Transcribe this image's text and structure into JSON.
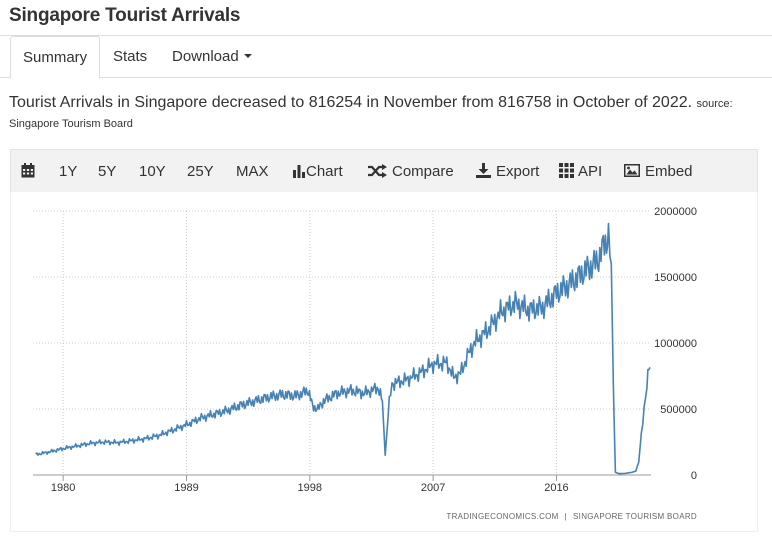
{
  "page": {
    "title": "Singapore Tourist Arrivals"
  },
  "tabs": [
    {
      "label": "Summary",
      "active": true
    },
    {
      "label": "Stats",
      "active": false
    },
    {
      "label": "Download",
      "active": false
    }
  ],
  "summary": {
    "text": "Tourist Arrivals in Singapore decreased to 816254 in November from 816758 in October of 2022.",
    "source_label": "source:",
    "source_name": "Singapore Tourism Board"
  },
  "toolbar": {
    "ranges": [
      "1Y",
      "5Y",
      "10Y",
      "25Y",
      "MAX"
    ],
    "chart_label": "Chart",
    "compare_label": "Compare",
    "export_label": "Export",
    "api_label": "API",
    "embed_label": "Embed"
  },
  "chart_data": {
    "type": "line",
    "title": "",
    "xlabel": "",
    "ylabel": "",
    "series_name": "Singapore Tourist Arrivals",
    "line_color": "#4682b4",
    "grid": true,
    "xlim": [
      1977.8,
      2022.9
    ],
    "ylim": [
      0,
      2000000
    ],
    "x_ticks": [
      1980,
      1989,
      1998,
      2007,
      2016
    ],
    "x_tick_labels": [
      "1980",
      "1989",
      "1998",
      "2007",
      "2016"
    ],
    "y_ticks": [
      0,
      500000,
      1000000,
      1500000,
      2000000
    ],
    "y_tick_labels": [
      "0",
      "500000",
      "1000000",
      "1500000",
      "2000000"
    ],
    "x": [
      1978.0,
      1979.0,
      1980.0,
      1981.0,
      1982.0,
      1983.0,
      1984.0,
      1985.0,
      1986.0,
      1987.0,
      1988.0,
      1989.0,
      1990.0,
      1991.0,
      1992.0,
      1993.0,
      1994.0,
      1995.0,
      1996.0,
      1997.0,
      1997.9,
      1998.2,
      1998.6,
      1999.0,
      2000.0,
      2001.0,
      2002.0,
      2003.0,
      2003.3,
      2003.5,
      2003.8,
      2004.0,
      2005.0,
      2006.0,
      2007.0,
      2008.0,
      2008.5,
      2009.0,
      2009.5,
      2010.0,
      2011.0,
      2012.0,
      2013.0,
      2014.0,
      2015.0,
      2016.0,
      2017.0,
      2018.0,
      2019.0,
      2019.5,
      2019.8,
      2020.0,
      2020.15,
      2020.3,
      2020.6,
      2021.0,
      2021.5,
      2021.8,
      2022.0,
      2022.2,
      2022.4,
      2022.6,
      2022.75,
      2022.83
    ],
    "y": [
      155000,
      175000,
      200000,
      220000,
      240000,
      250000,
      245000,
      260000,
      275000,
      300000,
      340000,
      380000,
      430000,
      460000,
      490000,
      530000,
      560000,
      590000,
      610000,
      600000,
      640000,
      520000,
      500000,
      560000,
      620000,
      640000,
      620000,
      660000,
      560000,
      150000,
      550000,
      690000,
      720000,
      770000,
      840000,
      850000,
      740000,
      770000,
      900000,
      1000000,
      1100000,
      1240000,
      1300000,
      1250000,
      1270000,
      1380000,
      1450000,
      1540000,
      1620000,
      1750000,
      1800000,
      1600000,
      700000,
      20000,
      10000,
      12000,
      20000,
      30000,
      100000,
      300000,
      500000,
      700000,
      816758,
      816254
    ]
  },
  "credits": {
    "site": "TRADINGECONOMICS.COM",
    "separator": "|",
    "source": "SINGAPORE TOURISM BOARD"
  }
}
